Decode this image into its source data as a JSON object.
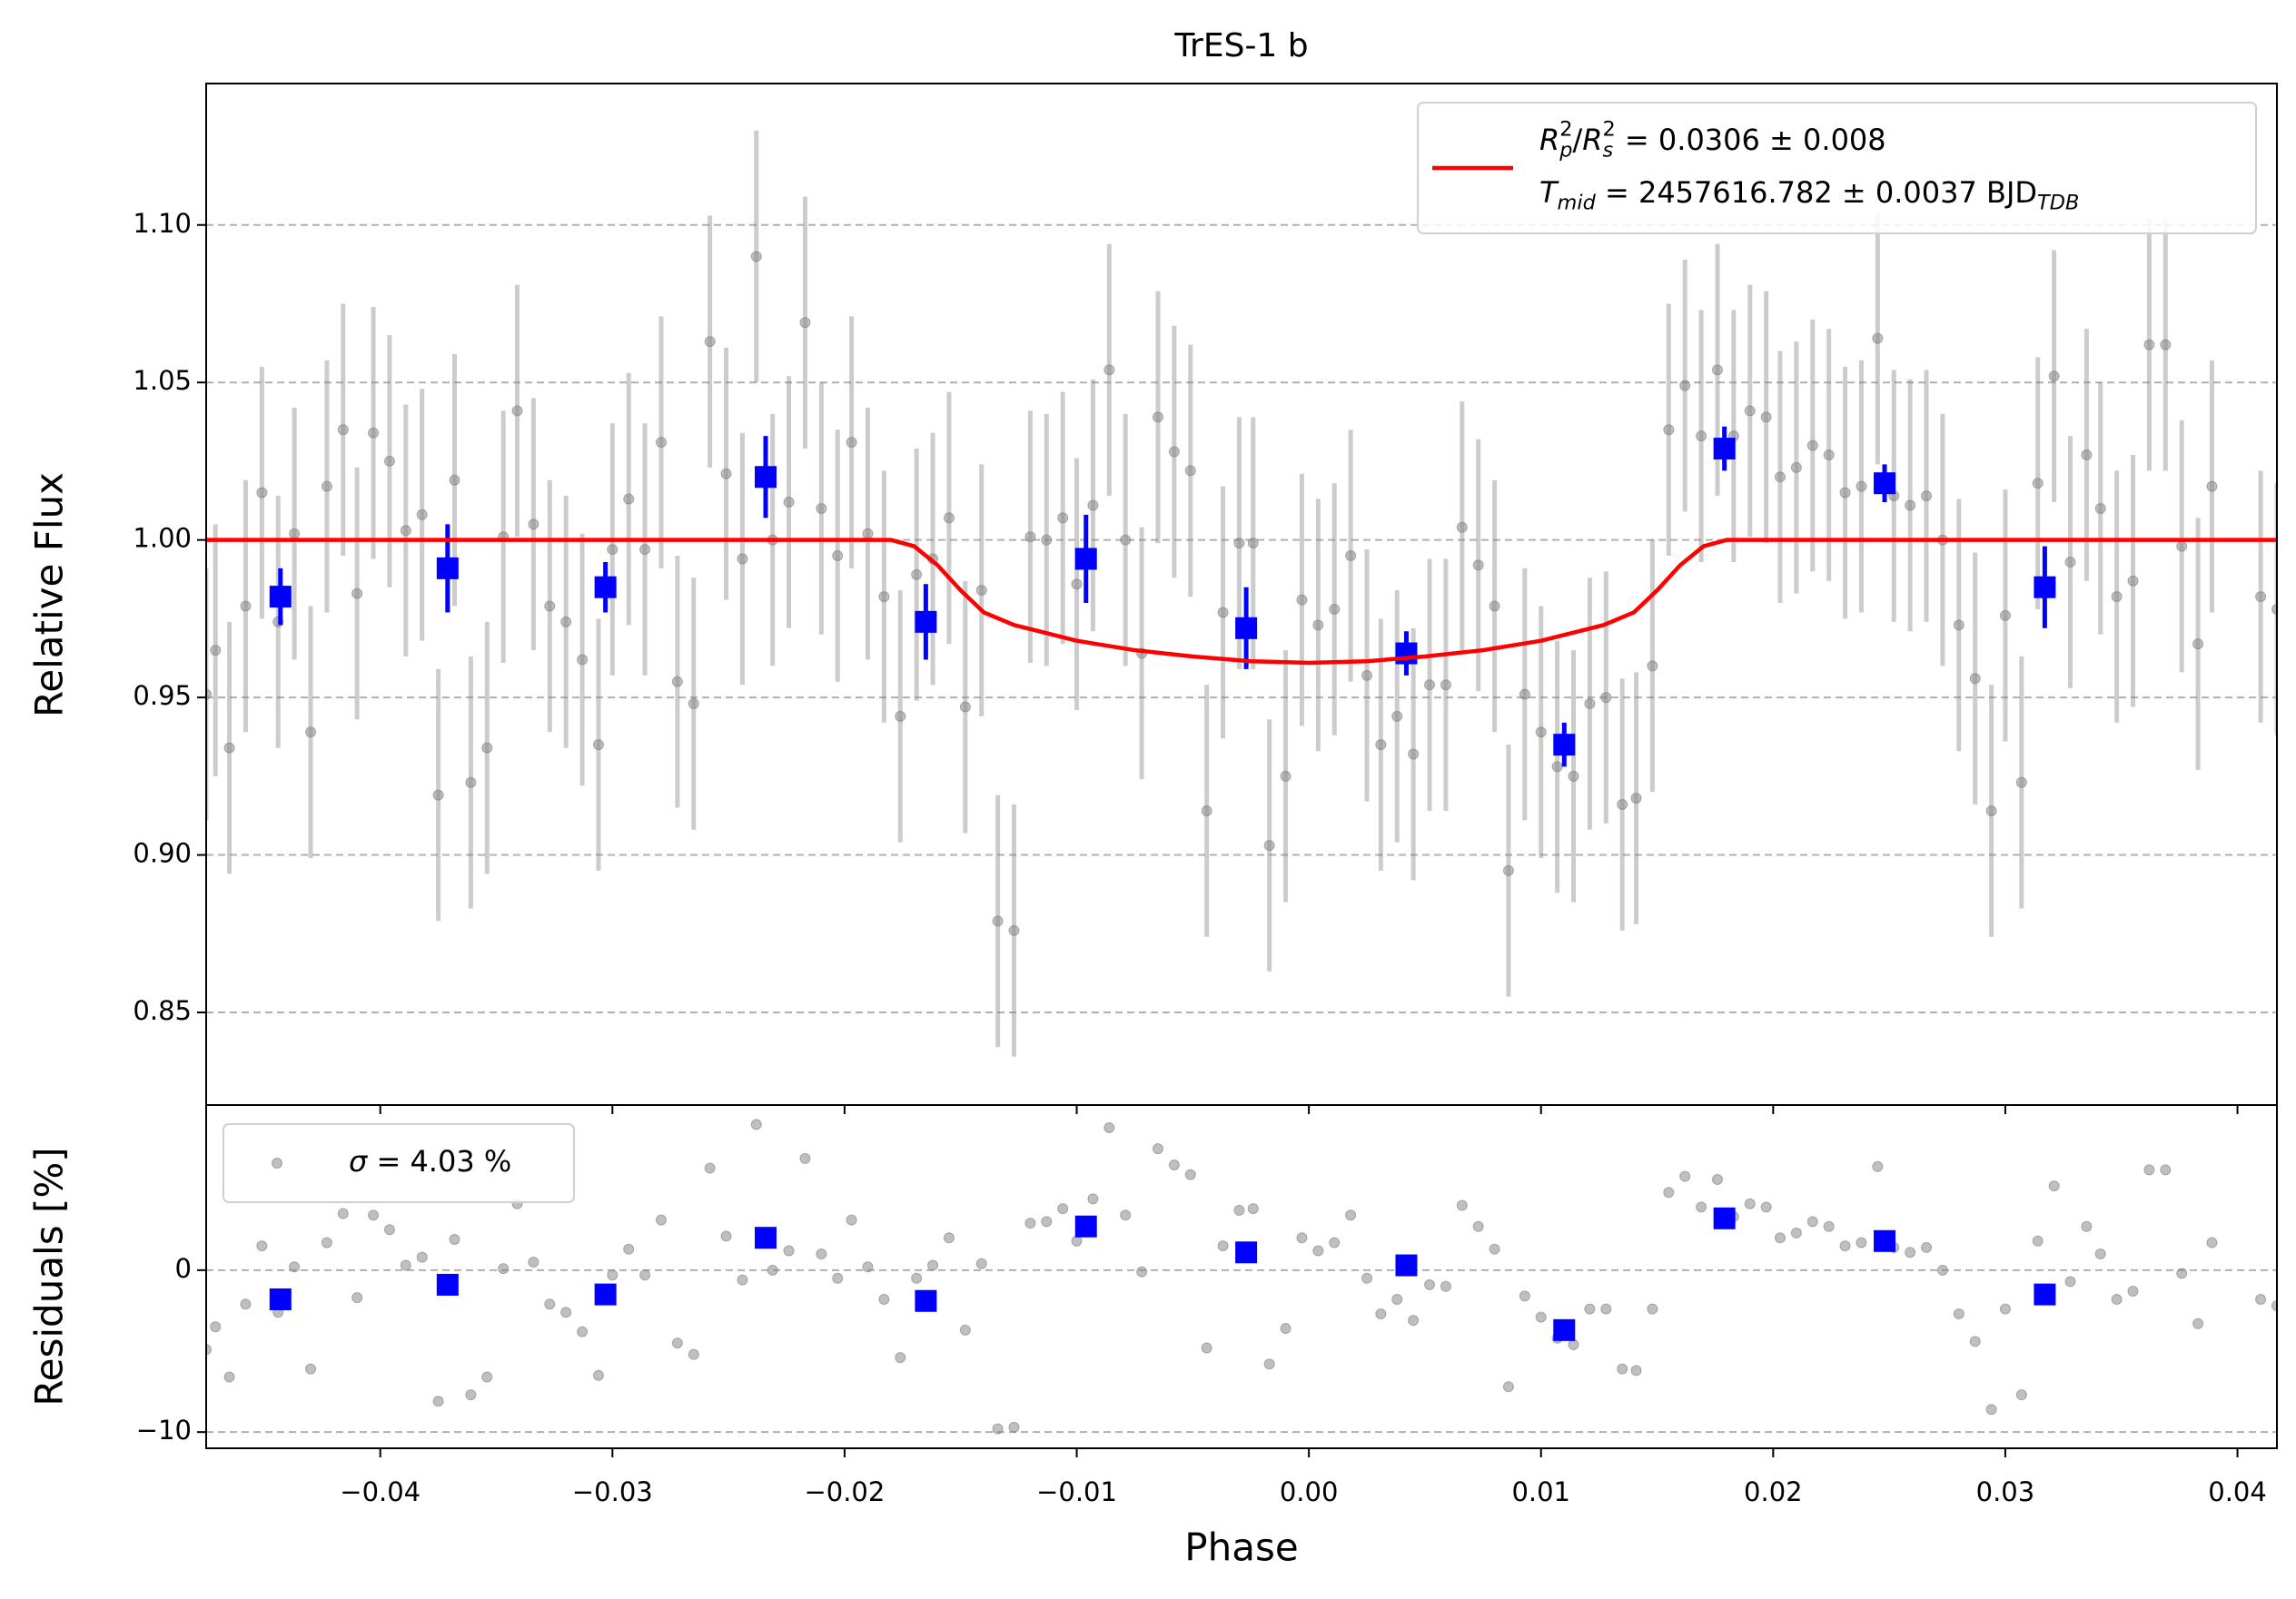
{
  "chart_data": [
    {
      "type": "scatter",
      "title": "TrES-1 b",
      "ylabel": "Relative Flux",
      "xlim": [
        -0.0475,
        0.0417
      ],
      "ylim": [
        0.8206,
        1.1449
      ],
      "yticks": [
        0.85,
        {
          "value": 0.9,
          "label": "0.90"
        },
        0.95,
        {
          "value": 1.0,
          "label": "1.00"
        },
        1.05,
        {
          "value": 1.1,
          "label": "1.10"
        }
      ],
      "grid": true,
      "legend": "upper right",
      "series": [
        {
          "type": "errorbar",
          "color": "#808080",
          "marker": "circle",
          "error": 0.04,
          "x": [
            -0.0475,
            -0.0471,
            -0.0465,
            -0.0458,
            -0.0451,
            -0.0444,
            -0.0437,
            -0.043,
            -0.0423,
            -0.0416,
            -0.041,
            -0.0403,
            -0.0396,
            -0.0389,
            -0.0382,
            -0.0375,
            -0.0368,
            -0.0361,
            -0.0354,
            -0.0347,
            -0.0341,
            -0.0334,
            -0.0327,
            -0.032,
            -0.0313,
            -0.0306,
            -0.03,
            -0.0293,
            -0.0286,
            -0.0279,
            -0.0272,
            -0.0265,
            -0.0258,
            -0.0251,
            -0.0244,
            -0.0238,
            -0.0231,
            -0.0224,
            -0.0217,
            -0.021,
            -0.0203,
            -0.0197,
            -0.019,
            -0.0183,
            -0.0176,
            -0.0169,
            -0.0162,
            -0.0155,
            -0.0148,
            -0.0141,
            -0.0134,
            -0.0127,
            -0.012,
            -0.0113,
            -0.0106,
            -0.01,
            -0.0093,
            -0.0086,
            -0.0079,
            -0.0072,
            -0.0065,
            -0.0058,
            -0.0051,
            -0.0044,
            -0.0037,
            -0.003,
            -0.0024,
            -0.0017,
            -0.001,
            -0.0003,
            0.0004,
            0.0011,
            0.0018,
            0.0025,
            0.0031,
            0.0038,
            0.0045,
            0.0052,
            0.0059,
            0.0066,
            0.0073,
            0.008,
            0.0086,
            0.0093,
            0.01,
            0.0107,
            0.0114,
            0.0121,
            0.0128,
            0.0135,
            0.0141,
            0.0148,
            0.0155,
            0.0162,
            0.0169,
            0.0176,
            0.0183,
            0.019,
            0.0197,
            0.0203,
            0.021,
            0.0217,
            0.0224,
            0.0231,
            0.0238,
            0.0245,
            0.0252,
            0.0259,
            0.0266,
            0.0273,
            0.028,
            0.0287,
            0.0294,
            0.03,
            0.0307,
            0.0314,
            0.0321,
            0.0328,
            0.0335,
            0.0341,
            0.0348,
            0.0355,
            0.0362,
            0.0369,
            0.0376,
            0.0383,
            0.0389,
            0.041,
            0.0417
          ],
          "values": [
            0.951,
            0.965,
            0.934,
            0.979,
            1.015,
            0.974,
            1.002,
            0.939,
            1.017,
            1.035,
            0.983,
            1.034,
            1.025,
            1.003,
            1.008,
            0.919,
            1.019,
            0.923,
            0.934,
            1.001,
            1.041,
            1.005,
            0.979,
            0.974,
            0.962,
            0.935,
            0.997,
            1.013,
            0.997,
            1.031,
            0.955,
            0.948,
            1.063,
            1.021,
            0.994,
            1.09,
            1.0,
            1.012,
            1.069,
            1.01,
            0.995,
            1.031,
            1.002,
            0.982,
            0.944,
            0.989,
            0.994,
            1.007,
            0.947,
            0.984,
            0.879,
            0.876,
            1.001,
            1.0,
            1.007,
            0.986,
            1.011,
            1.054,
            1.0,
            0.964,
            1.039,
            1.028,
            1.022,
            0.914,
            0.977,
            0.999,
            0.999,
            0.903,
            0.925,
            0.981,
            0.973,
            0.978,
            0.995,
            0.957,
            0.935,
            0.944,
            0.932,
            0.954,
            0.954,
            1.004,
            0.992,
            0.979,
            0.895,
            0.951,
            0.939,
            0.928,
            0.925,
            0.948,
            0.95,
            0.916,
            0.918,
            0.96,
            1.035,
            1.049,
            1.033,
            1.054,
            1.033,
            1.041,
            1.039,
            1.02,
            1.023,
            1.03,
            1.027,
            1.015,
            1.017,
            1.064,
            1.014,
            1.011,
            1.014,
            1.0,
            0.973,
            0.956,
            0.914,
            0.976,
            0.923,
            1.018,
            1.052,
            0.993,
            1.027,
            1.01,
            0.982,
            0.987,
            1.062,
            1.062,
            0.998,
            0.967,
            1.017,
            0.982,
            0.978
          ]
        },
        {
          "type": "errorbar",
          "color": "#0000ff",
          "marker": "square",
          "x": [
            -0.0443,
            -0.0371,
            -0.0303,
            -0.0234,
            -0.0165,
            -0.0096,
            -0.0027,
            0.0042,
            0.011,
            0.0179,
            0.0248,
            0.0317
          ],
          "values": [
            0.982,
            0.991,
            0.985,
            1.02,
            0.974,
            0.994,
            0.972,
            0.964,
            0.935,
            1.029,
            1.018,
            0.985
          ],
          "errors": [
            0.009,
            0.014,
            0.008,
            0.013,
            0.012,
            0.014,
            0.013,
            0.007,
            0.007,
            0.007,
            0.006,
            0.013
          ]
        },
        {
          "type": "line",
          "color": "#ff0000",
          "name": [
            [
              {
                "text": "R",
                "style": "italic"
              },
              {
                "text": "p",
                "style": "italic",
                "shift": "sub"
              },
              {
                "text": "2",
                "shift": "sup"
              },
              {
                "text": "/"
              },
              {
                "text": "R",
                "style": "italic"
              },
              {
                "text": "s",
                "style": "italic",
                "shift": "sub"
              },
              {
                "text": "2",
                "shift": "sup"
              },
              {
                "text": " = 0.0306 ± 0.008"
              }
            ],
            [
              {
                "text": "T",
                "style": "italic"
              },
              {
                "text": "mid",
                "style": "italic",
                "shift": "sub"
              },
              {
                "text": " = 2457616.782 ± 0.0037 BJD"
              },
              {
                "text": "TDB",
                "style": "italic",
                "shift": "sub"
              }
            ]
          ],
          "x": [
            -0.0475,
            -0.018,
            -0.017,
            -0.016,
            -0.015,
            -0.014,
            -0.0127,
            -0.01,
            -0.0075,
            -0.005,
            -0.0025,
            0,
            0.0025,
            0.005,
            0.0075,
            0.01,
            0.0127,
            0.014,
            0.015,
            0.016,
            0.017,
            0.018,
            0.0417
          ],
          "values": [
            1,
            1,
            0.998,
            0.992,
            0.984,
            0.977,
            0.973,
            0.968,
            0.965,
            0.963,
            0.9615,
            0.961,
            0.9615,
            0.963,
            0.965,
            0.968,
            0.973,
            0.977,
            0.984,
            0.992,
            0.998,
            1,
            1
          ]
        }
      ]
    },
    {
      "type": "scatter",
      "xlabel": "Phase",
      "ylabel": "Residuals [%]",
      "xlim": [
        -0.0475,
        0.0417
      ],
      "ylim": [
        -11.0,
        10.2
      ],
      "xticks": [
        {
          "value": -0.04,
          "label": "−0.04"
        },
        {
          "value": -0.03,
          "label": "−0.03"
        },
        {
          "value": -0.02,
          "label": "−0.02"
        },
        {
          "value": -0.01,
          "label": "−0.01"
        },
        {
          "value": 0,
          "label": "0.00"
        },
        0.01,
        0.02,
        0.03,
        0.04
      ],
      "yticks": [
        {
          "value": -10,
          "label": "−10"
        },
        0
      ],
      "grid": true,
      "legend": "upper left",
      "series": [
        {
          "type": "points",
          "color": "#808080",
          "marker": "circle",
          "name": [
            [
              {
                "text": "σ",
                "style": "italic"
              },
              {
                "text": " = 4.03 %"
              }
            ]
          ],
          "x": [
            -0.0475,
            -0.0471,
            -0.0465,
            -0.0458,
            -0.0451,
            -0.0444,
            -0.0437,
            -0.043,
            -0.0423,
            -0.0416,
            -0.041,
            -0.0403,
            -0.0396,
            -0.0389,
            -0.0382,
            -0.0375,
            -0.0368,
            -0.0361,
            -0.0354,
            -0.0347,
            -0.0341,
            -0.0334,
            -0.0327,
            -0.032,
            -0.0313,
            -0.0306,
            -0.03,
            -0.0293,
            -0.0286,
            -0.0279,
            -0.0272,
            -0.0265,
            -0.0258,
            -0.0251,
            -0.0244,
            -0.0238,
            -0.0231,
            -0.0224,
            -0.0217,
            -0.021,
            -0.0203,
            -0.0197,
            -0.019,
            -0.0183,
            -0.0176,
            -0.0169,
            -0.0162,
            -0.0155,
            -0.0148,
            -0.0141,
            -0.0134,
            -0.0127,
            -0.012,
            -0.0113,
            -0.0106,
            -0.01,
            -0.0093,
            -0.0086,
            -0.0079,
            -0.0072,
            -0.0065,
            -0.0058,
            -0.0051,
            -0.0044,
            -0.0037,
            -0.003,
            -0.0024,
            -0.0017,
            -0.001,
            -0.0003,
            0.0004,
            0.0011,
            0.0018,
            0.0025,
            0.0031,
            0.0038,
            0.0045,
            0.0052,
            0.0059,
            0.0066,
            0.0073,
            0.008,
            0.0086,
            0.0093,
            0.01,
            0.0107,
            0.0114,
            0.0121,
            0.0128,
            0.0135,
            0.0141,
            0.0148,
            0.0155,
            0.0162,
            0.0169,
            0.0176,
            0.0183,
            0.019,
            0.0197,
            0.0203,
            0.021,
            0.0217,
            0.0224,
            0.0231,
            0.0238,
            0.0245,
            0.0252,
            0.0259,
            0.0266,
            0.0273,
            0.028,
            0.0287,
            0.0294,
            0.03,
            0.0307,
            0.0314,
            0.0321,
            0.0328,
            0.0335,
            0.0341,
            0.0348,
            0.0355,
            0.0362,
            0.0369,
            0.0376,
            0.0383,
            0.0389,
            0.041,
            0.0417
          ],
          "values": [
            -4.9,
            -3.5,
            -6.6,
            -2.1,
            1.5,
            -2.6,
            0.2,
            -6.1,
            1.7,
            3.5,
            -1.7,
            3.4,
            2.5,
            0.3,
            0.8,
            -8.1,
            1.9,
            -7.7,
            -6.6,
            0.1,
            4.1,
            0.5,
            -2.1,
            -2.6,
            -3.8,
            -6.5,
            -0.3,
            1.3,
            -0.3,
            3.1,
            -4.5,
            -5.2,
            6.3,
            2.1,
            -0.6,
            9.0,
            0,
            1.2,
            6.9,
            1.0,
            -0.5,
            3.1,
            0.2,
            -1.8,
            -5.4,
            -0.5,
            0.3,
            2.0,
            -3.7,
            0.4,
            -9.8,
            -9.7,
            2.9,
            3.0,
            3.8,
            1.8,
            4.4,
            8.8,
            3.4,
            -0.1,
            7.5,
            6.5,
            5.9,
            -4.8,
            1.5,
            3.7,
            3.8,
            -5.8,
            -3.6,
            2.0,
            1.2,
            1.7,
            3.4,
            -0.5,
            -2.7,
            -1.8,
            -3.1,
            -0.9,
            -1.0,
            4.0,
            2.7,
            1.3,
            -7.2,
            -1.6,
            -2.9,
            -4.2,
            -4.6,
            -2.4,
            -2.4,
            -6.1,
            -6.2,
            -2.4,
            4.8,
            5.8,
            3.9,
            5.6,
            3.3,
            4.1,
            3.9,
            2.0,
            2.3,
            3.0,
            2.7,
            1.5,
            1.7,
            6.4,
            1.4,
            1.1,
            1.4,
            0,
            -2.7,
            -4.4,
            -8.6,
            -2.4,
            -7.7,
            1.8,
            5.2,
            -0.7,
            2.7,
            1.0,
            -1.8,
            -1.3,
            6.2,
            6.2,
            -0.2,
            -3.3,
            1.7,
            -1.8,
            -2.2
          ]
        },
        {
          "type": "points",
          "color": "#0000ff",
          "marker": "square",
          "x": [
            -0.0443,
            -0.0371,
            -0.0303,
            -0.0234,
            -0.0165,
            -0.0096,
            -0.0027,
            0.0042,
            0.011,
            0.0179,
            0.0248,
            0.0317
          ],
          "values": [
            -1.8,
            -0.9,
            -1.5,
            2.0,
            -1.9,
            2.7,
            1.1,
            0.3,
            -3.7,
            3.2,
            1.8,
            -1.5
          ]
        }
      ]
    }
  ]
}
